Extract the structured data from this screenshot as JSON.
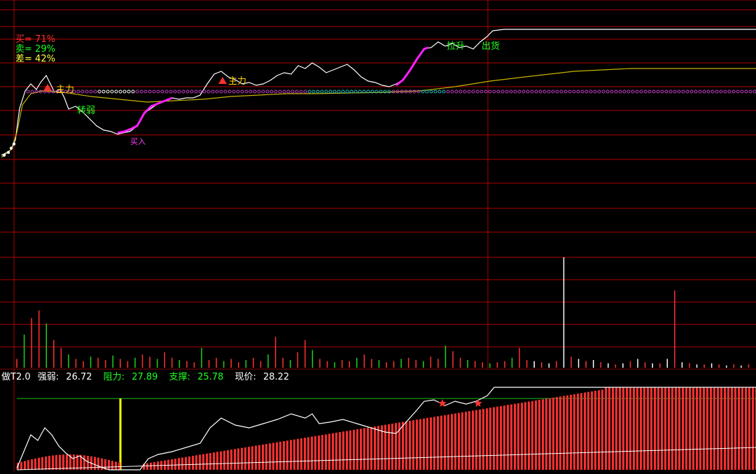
{
  "ratios": {
    "buy": {
      "label": "买",
      "value": "71%"
    },
    "sell": {
      "label": "卖",
      "value": "29%"
    },
    "diff": {
      "label": "差",
      "value": "42%"
    }
  },
  "annotations": {
    "main_force_1": "主力",
    "weak": "转弱",
    "buy_in": "买入",
    "main_force_2": "主力",
    "top_sell": "拉升",
    "ship_out": "出货"
  },
  "indicator": {
    "name": "做T2.0",
    "strength_label": "强弱:",
    "strength_value": "26.72",
    "resistance_label": "阻力:",
    "resistance_value": "27.89",
    "support_label": "支撑:",
    "support_value": "25.78",
    "price_label": "现价:",
    "price_value": "28.22"
  },
  "colors": {
    "background": "#000000",
    "grid": "#b00000",
    "price_line": "#ffffff",
    "avg_line": "#c8b400",
    "strength_band": "#ff20ff",
    "buy": "#ff3030",
    "sell": "#20ff20",
    "diff": "#ffff40",
    "volume_up": "#ff3030",
    "volume_down": "#20d020",
    "volume_flat": "#ffffff",
    "accent_bar": "#ffff00",
    "resistance_line": "#20c020"
  },
  "chart_data": [
    {
      "type": "line",
      "panel": "intraday price",
      "x": [
        0,
        10,
        20,
        30,
        40,
        50,
        60,
        70,
        80,
        90,
        100,
        110,
        120,
        130,
        140,
        150,
        160,
        170,
        180,
        190,
        200,
        210,
        220,
        230,
        240
      ],
      "series": [
        {
          "values": [
            25.8,
            27.2,
            27.6,
            27.7,
            27.4,
            27.1,
            27.0,
            26.9,
            26.6,
            26.5,
            26.6,
            26.7,
            26.9,
            27.1,
            27.2,
            27.5,
            27.7,
            27.6,
            27.3,
            27.1,
            27.6,
            28.0,
            28.3,
            28.3,
            28.3
          ]
        },
        {
          "values": [
            25.8,
            26.6,
            27.0,
            27.1,
            27.1,
            27.05,
            27.0,
            27.0,
            26.95,
            26.95,
            26.97,
            27.0,
            27.02,
            27.04,
            27.06,
            27.1,
            27.15,
            27.2,
            27.2,
            27.22,
            27.3,
            27.4,
            27.5,
            27.5,
            27.5
          ]
        }
      ],
      "markers": [
        "主力",
        "转弱",
        "买入",
        "主力",
        "拉升",
        "出货"
      ]
    },
    {
      "type": "bar",
      "panel": "volume",
      "note": "relative volume per minute, 0-100 scale",
      "values": [
        8,
        30,
        45,
        52,
        40,
        25,
        18,
        12,
        8,
        6,
        10,
        9,
        7,
        11,
        8,
        6,
        9,
        12,
        10,
        8,
        14,
        9,
        7,
        6,
        5,
        18,
        7,
        9,
        6,
        8,
        5,
        7,
        9,
        6,
        12,
        28,
        9,
        7,
        14,
        25,
        16,
        8,
        6,
        5,
        7,
        6,
        9,
        12,
        8,
        7,
        5,
        6,
        8,
        9,
        7,
        6,
        10,
        8,
        20,
        15,
        9,
        7,
        6,
        5,
        4,
        5,
        6,
        9,
        18,
        7,
        6,
        5,
        4,
        6,
        100,
        10,
        8,
        6,
        7,
        5,
        4,
        3,
        4,
        6,
        8,
        5,
        4,
        4,
        8,
        70,
        5,
        4,
        3,
        3,
        4,
        3,
        2,
        3,
        2,
        3
      ]
    },
    {
      "type": "bar",
      "panel": "做T2.0 strength",
      "note": "strength histogram with price overlay",
      "resistance": 27.89,
      "support": 25.78,
      "strength": 26.72,
      "price": 28.22
    }
  ]
}
